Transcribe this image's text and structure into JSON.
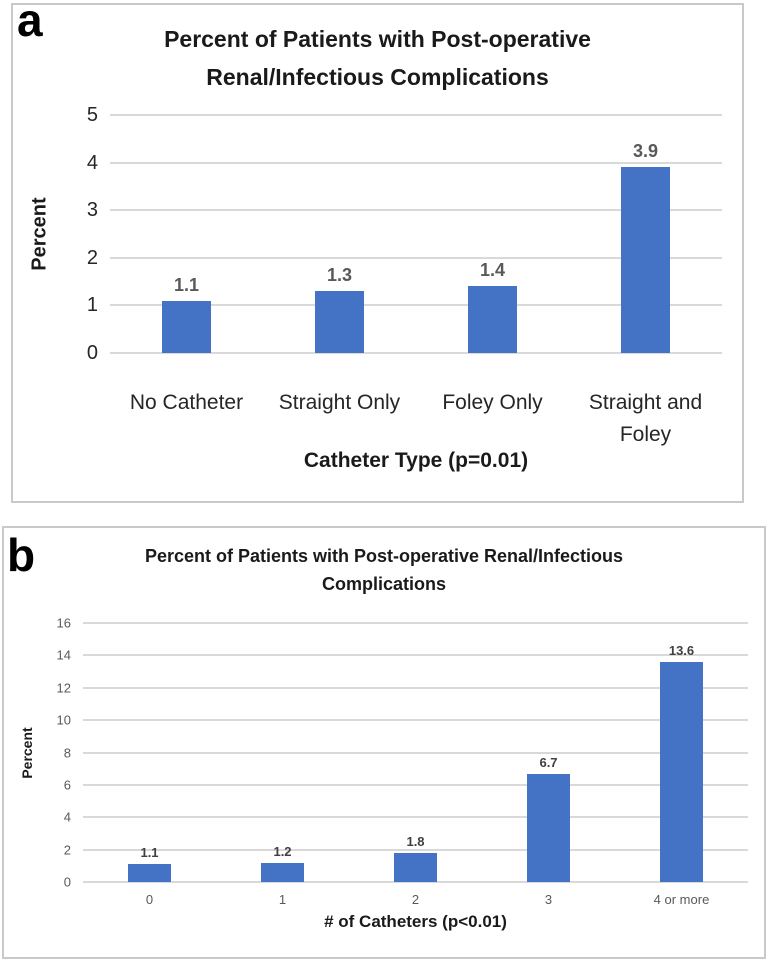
{
  "colors": {
    "bar": "#4472C4",
    "gridline": "#d9d9d9",
    "panel_border": "#c9c9c9",
    "title_text": "#1a1a1a",
    "tick_dark": "#262626",
    "tick_gray": "#595959",
    "data_label_a": "#595959",
    "data_label_b": "#404040"
  },
  "chart_data": [
    {
      "id": "a",
      "type": "bar",
      "panel_label": "a",
      "title": "Percent of Patients with Post-operative Renal/Infectious Complications",
      "title_lines": [
        "Percent of Patients with Post-operative",
        "Renal/Infectious Complications"
      ],
      "categories": [
        "No Catheter",
        "Straight Only",
        "Foley Only",
        "Straight and Foley"
      ],
      "values": [
        1.1,
        1.3,
        1.4,
        3.9
      ],
      "value_labels": [
        "1.1",
        "1.3",
        "1.4",
        "3.9"
      ],
      "xlabel": "Catheter Type (p=0.01)",
      "ylabel": "Percent",
      "ylim": [
        0,
        5
      ],
      "yticks": [
        0,
        1,
        2,
        3,
        4,
        5
      ],
      "grid": true,
      "legend": false
    },
    {
      "id": "b",
      "type": "bar",
      "panel_label": "b",
      "title": "Percent of Patients with Post-operative Renal/Infectious Complications",
      "title_lines": [
        "Percent of Patients with Post-operative Renal/Infectious",
        "Complications"
      ],
      "categories": [
        "0",
        "1",
        "2",
        "3",
        "4 or more"
      ],
      "values": [
        1.1,
        1.2,
        1.8,
        6.7,
        13.6
      ],
      "value_labels": [
        "1.1",
        "1.2",
        "1.8",
        "6.7",
        "13.6"
      ],
      "xlabel": "# of Catheters (p<0.01)",
      "ylabel": "Percent",
      "ylim": [
        0,
        16
      ],
      "yticks": [
        0,
        2,
        4,
        6,
        8,
        10,
        12,
        14,
        16
      ],
      "grid": true,
      "legend": false
    }
  ]
}
